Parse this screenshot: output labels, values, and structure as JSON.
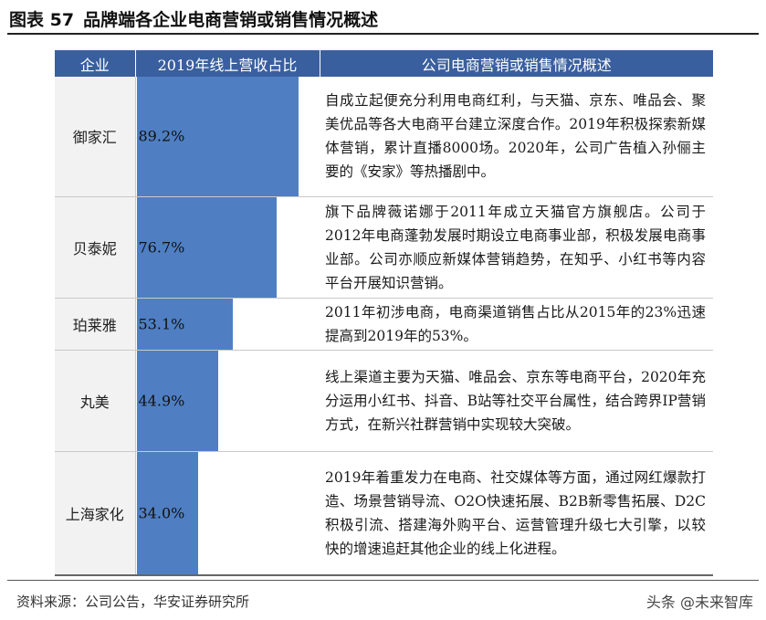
{
  "figure": {
    "label": "图表 57",
    "title": "品牌端各企业电商营销或销售情况概述"
  },
  "table": {
    "headers": [
      "企业",
      "2019年线上营收占比",
      "公司电商营销或销售情况概述"
    ],
    "bar_color": "#4f7fc2",
    "header_color": "#3a5f9e",
    "rows": [
      {
        "company": "御家汇",
        "share_label": "89.2%",
        "share": 89.2,
        "description": "自成立起便充分利用电商红利，与天猫、京东、唯品会、聚美优品等各大电商平台建立深度合作。2019年积极探索新媒体营销，累计直播8000场。2020年，公司广告植入孙俪主要的《安家》等热播剧中。"
      },
      {
        "company": "贝泰妮",
        "share_label": "76.7%",
        "share": 76.7,
        "description": "旗下品牌薇诺娜于2011年成立天猫官方旗舰店。公司于2012年电商蓬勃发展时期设立电商事业部，积极发展电商事业部。公司亦顺应新媒体营销趋势，在知乎、小红书等内容平台开展知识营销。"
      },
      {
        "company": "珀莱雅",
        "share_label": "53.1%",
        "share": 53.1,
        "description": "2011年初涉电商，电商渠道销售占比从2015年的23%迅速提高到2019年的53%。"
      },
      {
        "company": "丸美",
        "share_label": "44.9%",
        "share": 44.9,
        "description": "线上渠道主要为天猫、唯品会、京东等电商平台，2020年充分运用小红书、抖音、B站等社交平台属性，结合跨界IP营销方式，在新兴社群营销中实现较大突破。"
      },
      {
        "company": "上海家化",
        "share_label": "34.0%",
        "share": 34.0,
        "description": "2019年着重发力在电商、社交媒体等方面，通过网红爆款打造、场景营销导流、O2O快速拓展、B2B新零售拓展、D2C积极引流、搭建海外购平台、运营管理升级七大引擎，以较快的增速追赶其他企业的线上化进程。"
      }
    ]
  },
  "footer": {
    "source": "资料来源：公司公告，华安证券研究所",
    "watermark": "头条 @未来智库"
  }
}
